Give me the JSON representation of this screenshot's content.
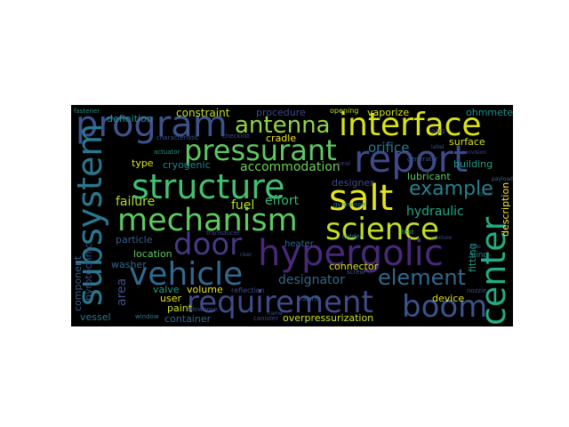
{
  "wordcloud": {
    "background": "#000000",
    "words": [
      {
        "text": "program",
        "color": "#3b528b"
      },
      {
        "text": "antenna",
        "color": "#90d743"
      },
      {
        "text": "interface",
        "color": "#d8e219"
      },
      {
        "text": "pressurant",
        "color": "#5ec962"
      },
      {
        "text": "report",
        "color": "#3e4989"
      },
      {
        "text": "structure",
        "color": "#43bf71"
      },
      {
        "text": "salt",
        "color": "#e5e419"
      },
      {
        "text": "mechanism",
        "color": "#5ec962"
      },
      {
        "text": "science",
        "color": "#c0df25"
      },
      {
        "text": "door",
        "color": "#443983"
      },
      {
        "text": "hypergolic",
        "color": "#482878"
      },
      {
        "text": "vehicle",
        "color": "#31688e"
      },
      {
        "text": "requirement",
        "color": "#3e4a89"
      },
      {
        "text": "boom",
        "color": "#3b528b"
      },
      {
        "text": "element",
        "color": "#31688e"
      },
      {
        "text": "example",
        "color": "#26828e"
      },
      {
        "text": "subsystem",
        "color": "#2a788e"
      },
      {
        "text": "center",
        "color": "#25ab82"
      },
      {
        "text": "definition",
        "color": "#21918c"
      },
      {
        "text": "constraint",
        "color": "#c2df23"
      },
      {
        "text": "procedure",
        "color": "#3e4989"
      },
      {
        "text": "opening",
        "color": "#b5de2b"
      },
      {
        "text": "vaporize",
        "color": "#d0e11c"
      },
      {
        "text": "ohmmeter",
        "color": "#21918c"
      },
      {
        "text": "orifice",
        "color": "#2a788e"
      },
      {
        "text": "surface",
        "color": "#d2e21b"
      },
      {
        "text": "cradle",
        "color": "#f1e51d"
      },
      {
        "text": "accommodation",
        "color": "#6ece58"
      },
      {
        "text": "cryogenic",
        "color": "#26828e"
      },
      {
        "text": "type",
        "color": "#dde318"
      },
      {
        "text": "failure",
        "color": "#addc30"
      },
      {
        "text": "fuel",
        "color": "#b5de2b"
      },
      {
        "text": "effort",
        "color": "#35b779"
      },
      {
        "text": "hydraulic",
        "color": "#22a884"
      },
      {
        "text": "lubricant",
        "color": "#5ec962"
      },
      {
        "text": "designer",
        "color": "#3e4989"
      },
      {
        "text": "designator",
        "color": "#31688e"
      },
      {
        "text": "particle",
        "color": "#355f8d"
      },
      {
        "text": "location",
        "color": "#5ec962"
      },
      {
        "text": "washer",
        "color": "#31688e"
      },
      {
        "text": "heater",
        "color": "#31688e"
      },
      {
        "text": "connector",
        "color": "#d8e219"
      },
      {
        "text": "fitting",
        "color": "#1f9e89"
      },
      {
        "text": "component",
        "color": "#355f8d"
      },
      {
        "text": "pyrotechnic",
        "color": "#3b528b"
      },
      {
        "text": "area",
        "color": "#3b528b"
      },
      {
        "text": "valve",
        "color": "#1f9e89"
      },
      {
        "text": "volume",
        "color": "#e5e419"
      },
      {
        "text": "user",
        "color": "#e5e419"
      },
      {
        "text": "paint",
        "color": "#c8e020"
      },
      {
        "text": "vessel",
        "color": "#2a788e"
      },
      {
        "text": "container",
        "color": "#31688e"
      },
      {
        "text": "overpressurization",
        "color": "#c8e020"
      },
      {
        "text": "device",
        "color": "#d8e219"
      },
      {
        "text": "description",
        "color": "#fde725"
      },
      {
        "text": "building",
        "color": "#1f9e89"
      },
      {
        "text": "gyroscope",
        "color": "#2a788e"
      },
      {
        "text": "alarm",
        "color": "#31688e"
      },
      {
        "text": "screw",
        "color": "#3b528b"
      },
      {
        "text": "reflection",
        "color": "#3e4a89"
      },
      {
        "text": "checklist",
        "color": "#3e4989"
      },
      {
        "text": "characteristic",
        "color": "#3b528b"
      },
      {
        "text": "transducer",
        "color": "#3e4a89"
      },
      {
        "text": "ladder",
        "color": "#2a788e"
      },
      {
        "text": "riser",
        "color": "#3b528b"
      },
      {
        "text": "mixture",
        "color": "#3e4989"
      },
      {
        "text": "fastener",
        "color": "#21918c"
      },
      {
        "text": "window",
        "color": "#2a788e"
      },
      {
        "text": "canister",
        "color": "#3e4989"
      },
      {
        "text": "nozzle",
        "color": "#3e4989"
      },
      {
        "text": "generator",
        "color": "#3b528b"
      },
      {
        "text": "actuator",
        "color": "#21918c"
      },
      {
        "text": "seal",
        "color": "#443983"
      },
      {
        "text": "label",
        "color": "#3b528b"
      },
      {
        "text": "payload",
        "color": "#31688e"
      },
      {
        "text": "allowance",
        "color": "#3e4989"
      },
      {
        "text": "cover",
        "color": "#2a788e"
      },
      {
        "text": "plug",
        "color": "#3e4989"
      },
      {
        "text": "frame",
        "color": "#3b528b"
      },
      {
        "text": "pipe",
        "color": "#3e4989"
      },
      {
        "text": "test",
        "color": "#35b779"
      },
      {
        "text": "sling",
        "color": "#26828e"
      },
      {
        "text": "provision",
        "color": "#3e4989"
      }
    ]
  }
}
